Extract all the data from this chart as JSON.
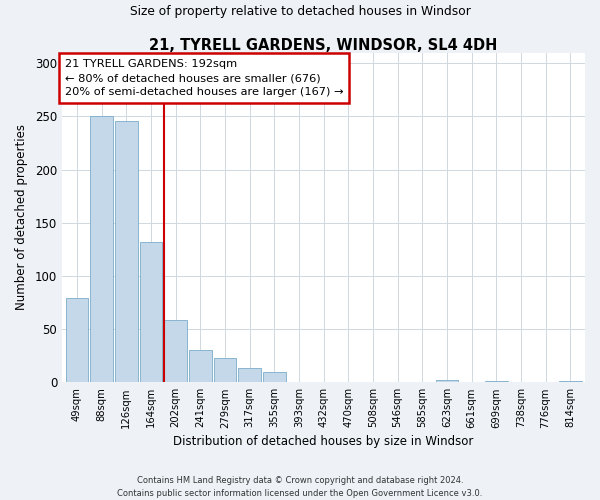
{
  "title": "21, TYRELL GARDENS, WINDSOR, SL4 4DH",
  "subtitle": "Size of property relative to detached houses in Windsor",
  "xlabel": "Distribution of detached houses by size in Windsor",
  "ylabel": "Number of detached properties",
  "bar_color": "#c5d8ea",
  "bar_edge_color": "#7aaec8",
  "categories": [
    "49sqm",
    "88sqm",
    "126sqm",
    "164sqm",
    "202sqm",
    "241sqm",
    "279sqm",
    "317sqm",
    "355sqm",
    "393sqm",
    "432sqm",
    "470sqm",
    "508sqm",
    "546sqm",
    "585sqm",
    "623sqm",
    "661sqm",
    "699sqm",
    "738sqm",
    "776sqm",
    "814sqm"
  ],
  "values": [
    79,
    250,
    246,
    132,
    59,
    30,
    23,
    13,
    10,
    0,
    0,
    0,
    0,
    0,
    0,
    2,
    0,
    1,
    0,
    0,
    1
  ],
  "ylim": [
    0,
    310
  ],
  "yticks": [
    0,
    50,
    100,
    150,
    200,
    250,
    300
  ],
  "vline_index": 4,
  "vline_color": "#cc0000",
  "annotation_title": "21 TYRELL GARDENS: 192sqm",
  "annotation_line1": "← 80% of detached houses are smaller (676)",
  "annotation_line2": "20% of semi-detached houses are larger (167) →",
  "annotation_box_color": "#ffffff",
  "annotation_box_edge": "#cc0000",
  "footer1": "Contains HM Land Registry data © Crown copyright and database right 2024.",
  "footer2": "Contains public sector information licensed under the Open Government Licence v3.0.",
  "background_color": "#eef2f7",
  "plot_bg_color": "#ffffff",
  "grid_color": "#d0d8e0"
}
